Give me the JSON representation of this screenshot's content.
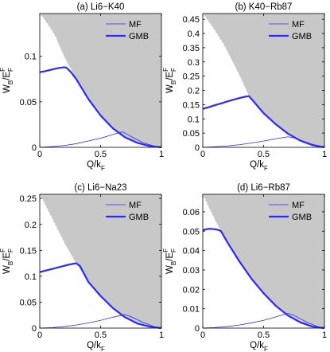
{
  "chart_data": [
    {
      "type": "line",
      "title": "(a) Li6−K40",
      "ylabel_main": "W",
      "ylabel_sub": "B",
      "ylabel_slash": "/E",
      "ylabel_sup": "F",
      "ylabel_sub2": "F",
      "xlabel_main": "Q/k",
      "xlabel_sub": "F",
      "xlim": [
        0,
        1
      ],
      "ylim": [
        0,
        0.147
      ],
      "x_ticks": [
        0,
        0.5,
        1
      ],
      "y_ticks": [
        0,
        0.05,
        0.1
      ],
      "x_tick_labels": [
        "0",
        "0.5",
        "1"
      ],
      "y_tick_labels": [
        "0",
        "0.05",
        "0.1"
      ],
      "legend_position": "top-right",
      "shaded_region": {
        "color": "#c8c8c8",
        "solid": [
          [
            0.135,
            0.12
          ],
          [
            0.2,
            0.1
          ],
          [
            0.3,
            0.075
          ],
          [
            0.4,
            0.053
          ],
          [
            0.5,
            0.035
          ],
          [
            0.6,
            0.021
          ],
          [
            0.7,
            0.011
          ],
          [
            0.8,
            0.005
          ],
          [
            0.9,
            0.0015
          ],
          [
            1.0,
            0
          ]
        ],
        "dashed": [
          [
            0.0,
            0.147
          ],
          [
            0.05,
            0.138
          ],
          [
            0.1,
            0.128
          ],
          [
            0.135,
            0.12
          ]
        ]
      },
      "series": [
        {
          "name": "MF",
          "color": "#2a2aff",
          "width": 0.8,
          "points": [
            [
              0,
              0
            ],
            [
              0.1,
              0.0008
            ],
            [
              0.2,
              0.002
            ],
            [
              0.3,
              0.004
            ],
            [
              0.4,
              0.007
            ],
            [
              0.5,
              0.01
            ],
            [
              0.6,
              0.014
            ],
            [
              0.68,
              0.017
            ],
            [
              0.75,
              0.012
            ],
            [
              0.85,
              0.005
            ],
            [
              0.95,
              0.001
            ],
            [
              1.0,
              0
            ]
          ]
        },
        {
          "name": "GMB",
          "color": "#2a2aff",
          "width": 2.2,
          "points": [
            [
              0,
              0.0825
            ],
            [
              0.05,
              0.0838
            ],
            [
              0.1,
              0.0855
            ],
            [
              0.15,
              0.087
            ],
            [
              0.2,
              0.088
            ],
            [
              0.22,
              0.0875
            ],
            [
              0.26,
              0.082
            ],
            [
              0.3,
              0.075
            ],
            [
              0.4,
              0.053
            ],
            [
              0.5,
              0.035
            ],
            [
              0.6,
              0.021
            ],
            [
              0.7,
              0.011
            ],
            [
              0.8,
              0.005
            ],
            [
              0.9,
              0.0015
            ],
            [
              1.0,
              0
            ]
          ]
        }
      ]
    },
    {
      "type": "line",
      "title": "(b) K40−Rb87",
      "ylabel_main": "W",
      "ylabel_sub": "B",
      "ylabel_slash": "/E",
      "ylabel_sup": "F",
      "ylabel_sub2": "F",
      "xlabel_main": "Q/k",
      "xlabel_sub": "F",
      "xlim": [
        0,
        1
      ],
      "ylim": [
        0,
        0.47
      ],
      "x_ticks": [
        0,
        0.5,
        1
      ],
      "y_ticks": [
        0,
        0.05,
        0.1,
        0.15,
        0.2,
        0.25,
        0.3,
        0.35,
        0.4,
        0.45
      ],
      "x_tick_labels": [
        "0",
        "0.5",
        "1"
      ],
      "y_tick_labels": [
        "0",
        "0.05",
        "0.1",
        "0.15",
        "0.2",
        "0.25",
        "0.3",
        "0.35",
        "0.4",
        "0.45"
      ],
      "legend_position": "top-right",
      "shaded_region": {
        "color": "#c8c8c8",
        "solid": [
          [
            0.2,
            0.34
          ],
          [
            0.3,
            0.255
          ],
          [
            0.38,
            0.18
          ],
          [
            0.5,
            0.12
          ],
          [
            0.6,
            0.081
          ],
          [
            0.7,
            0.048
          ],
          [
            0.8,
            0.024
          ],
          [
            0.9,
            0.008
          ],
          [
            1.0,
            0
          ]
        ],
        "dashed": [
          [
            0.0,
            0.47
          ],
          [
            0.05,
            0.44
          ],
          [
            0.1,
            0.41
          ],
          [
            0.15,
            0.375
          ],
          [
            0.2,
            0.34
          ]
        ]
      },
      "series": [
        {
          "name": "MF",
          "color": "#2a2aff",
          "width": 0.8,
          "points": [
            [
              0,
              0
            ],
            [
              0.1,
              0.002
            ],
            [
              0.2,
              0.005
            ],
            [
              0.3,
              0.009
            ],
            [
              0.4,
              0.015
            ],
            [
              0.5,
              0.022
            ],
            [
              0.6,
              0.03
            ],
            [
              0.7,
              0.037
            ],
            [
              0.75,
              0.033
            ],
            [
              0.85,
              0.018
            ],
            [
              0.95,
              0.004
            ],
            [
              1.0,
              0
            ]
          ]
        },
        {
          "name": "GMB",
          "color": "#2a2aff",
          "width": 2.2,
          "points": [
            [
              0,
              0.135
            ],
            [
              0.05,
              0.141
            ],
            [
              0.1,
              0.148
            ],
            [
              0.15,
              0.154
            ],
            [
              0.2,
              0.161
            ],
            [
              0.25,
              0.167
            ],
            [
              0.3,
              0.173
            ],
            [
              0.35,
              0.178
            ],
            [
              0.38,
              0.18
            ],
            [
              0.5,
              0.12
            ],
            [
              0.6,
              0.081
            ],
            [
              0.7,
              0.048
            ],
            [
              0.8,
              0.024
            ],
            [
              0.9,
              0.008
            ],
            [
              1.0,
              0
            ]
          ]
        }
      ]
    },
    {
      "type": "line",
      "title": "(c) Li6−Na23",
      "ylabel_main": "W",
      "ylabel_sub": "B",
      "ylabel_slash": "/E",
      "ylabel_sup": "F",
      "ylabel_sub2": "F",
      "xlabel_main": "Q/k",
      "xlabel_sub": "F",
      "xlim": [
        0,
        1
      ],
      "ylim": [
        0,
        0.258
      ],
      "x_ticks": [
        0,
        0.5,
        1
      ],
      "y_ticks": [
        0,
        0.05,
        0.1,
        0.15,
        0.2,
        0.25
      ],
      "x_tick_labels": [
        "0",
        "0.5",
        "1"
      ],
      "y_tick_labels": [
        "0",
        "0.05",
        "0.1",
        "0.15",
        "0.2",
        "0.25"
      ],
      "legend_position": "top-right",
      "shaded_region": {
        "color": "#c8c8c8",
        "solid": [
          [
            0.2,
            0.165
          ],
          [
            0.3,
            0.125
          ],
          [
            0.4,
            0.089
          ],
          [
            0.5,
            0.062
          ],
          [
            0.6,
            0.039
          ],
          [
            0.7,
            0.021
          ],
          [
            0.8,
            0.009
          ],
          [
            0.9,
            0.003
          ],
          [
            1.0,
            0
          ]
        ],
        "dashed": [
          [
            0.0,
            0.258
          ],
          [
            0.05,
            0.235
          ],
          [
            0.1,
            0.212
          ],
          [
            0.15,
            0.188
          ],
          [
            0.2,
            0.165
          ]
        ]
      },
      "series": [
        {
          "name": "MF",
          "color": "#2a2aff",
          "width": 0.8,
          "points": [
            [
              0,
              0
            ],
            [
              0.1,
              0.001
            ],
            [
              0.2,
              0.003
            ],
            [
              0.3,
              0.006
            ],
            [
              0.4,
              0.01
            ],
            [
              0.5,
              0.015
            ],
            [
              0.6,
              0.021
            ],
            [
              0.7,
              0.026
            ],
            [
              0.75,
              0.022
            ],
            [
              0.85,
              0.011
            ],
            [
              0.95,
              0.002
            ],
            [
              1.0,
              0
            ]
          ]
        },
        {
          "name": "GMB",
          "color": "#2a2aff",
          "width": 2.2,
          "points": [
            [
              0,
              0.108
            ],
            [
              0.05,
              0.111
            ],
            [
              0.1,
              0.114
            ],
            [
              0.15,
              0.117
            ],
            [
              0.2,
              0.12
            ],
            [
              0.25,
              0.123
            ],
            [
              0.3,
              0.125
            ],
            [
              0.33,
              0.12
            ],
            [
              0.4,
              0.089
            ],
            [
              0.5,
              0.062
            ],
            [
              0.6,
              0.039
            ],
            [
              0.7,
              0.021
            ],
            [
              0.8,
              0.009
            ],
            [
              0.9,
              0.003
            ],
            [
              1.0,
              0
            ]
          ]
        }
      ]
    },
    {
      "type": "line",
      "title": "(d) Li6−Rb87",
      "ylabel_main": "W",
      "ylabel_sub": "B",
      "ylabel_slash": "/E",
      "ylabel_sup": "F",
      "ylabel_sub2": "F",
      "xlabel_main": "Q/k",
      "xlabel_sub": "F",
      "xlim": [
        0,
        1
      ],
      "ylim": [
        0,
        0.069
      ],
      "x_ticks": [
        0,
        0.5,
        1
      ],
      "y_ticks": [
        0,
        0.01,
        0.02,
        0.03,
        0.04,
        0.05,
        0.06
      ],
      "x_tick_labels": [
        "0",
        "0.5",
        "1"
      ],
      "y_tick_labels": [
        "0",
        "0.01",
        "0.02",
        "0.03",
        "0.04",
        "0.05",
        "0.06"
      ],
      "legend_position": "top-right",
      "shaded_region": {
        "color": "#c8c8c8",
        "solid": [
          [
            0.1,
            0.0558
          ],
          [
            0.15,
            0.05
          ],
          [
            0.2,
            0.0445
          ],
          [
            0.3,
            0.0345
          ],
          [
            0.4,
            0.0255
          ],
          [
            0.5,
            0.018
          ],
          [
            0.6,
            0.0115
          ],
          [
            0.7,
            0.0065
          ],
          [
            0.8,
            0.003
          ],
          [
            0.9,
            0.0008
          ],
          [
            1.0,
            0
          ]
        ],
        "dashed": [
          [
            0.0,
            0.069
          ],
          [
            0.05,
            0.062
          ],
          [
            0.1,
            0.0558
          ]
        ]
      },
      "series": [
        {
          "name": "MF",
          "color": "#2a2aff",
          "width": 0.8,
          "points": [
            [
              0,
              0
            ],
            [
              0.1,
              0.0003
            ],
            [
              0.2,
              0.0008
            ],
            [
              0.3,
              0.0016
            ],
            [
              0.4,
              0.0027
            ],
            [
              0.5,
              0.004
            ],
            [
              0.6,
              0.0058
            ],
            [
              0.7,
              0.0076
            ],
            [
              0.75,
              0.0066
            ],
            [
              0.85,
              0.0032
            ],
            [
              0.95,
              0.0006
            ],
            [
              1.0,
              0
            ]
          ]
        },
        {
          "name": "GMB",
          "color": "#2a2aff",
          "width": 2.2,
          "points": [
            [
              0,
              0.0505
            ],
            [
              0.03,
              0.051
            ],
            [
              0.06,
              0.0512
            ],
            [
              0.1,
              0.051
            ],
            [
              0.13,
              0.0506
            ],
            [
              0.15,
              0.05
            ],
            [
              0.2,
              0.0445
            ],
            [
              0.3,
              0.0345
            ],
            [
              0.4,
              0.0255
            ],
            [
              0.5,
              0.018
            ],
            [
              0.6,
              0.0115
            ],
            [
              0.7,
              0.0065
            ],
            [
              0.8,
              0.003
            ],
            [
              0.9,
              0.0008
            ],
            [
              1.0,
              0
            ]
          ]
        }
      ]
    }
  ]
}
